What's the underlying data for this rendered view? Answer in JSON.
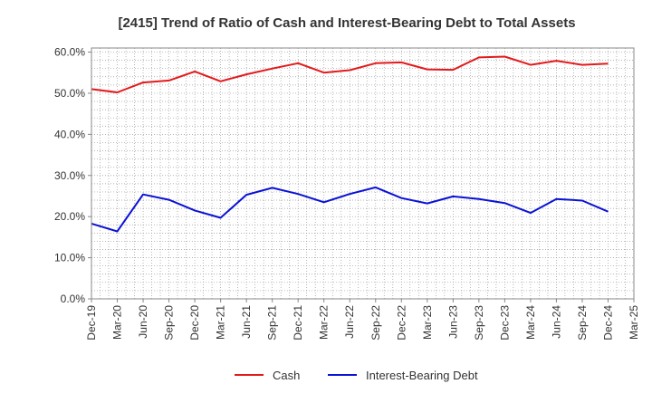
{
  "chart_data": {
    "type": "line",
    "title": "[2415]  Trend of Ratio of Cash and Interest-Bearing Debt to Total Assets",
    "xlabel": "",
    "ylabel": "",
    "x": [
      "Dec-19",
      "Mar-20",
      "Jun-20",
      "Sep-20",
      "Dec-20",
      "Mar-21",
      "Jun-21",
      "Sep-21",
      "Dec-21",
      "Mar-22",
      "Jun-22",
      "Sep-22",
      "Dec-22",
      "Mar-23",
      "Jun-23",
      "Sep-23",
      "Dec-23",
      "Mar-24",
      "Jun-24",
      "Sep-24",
      "Dec-24",
      "Mar-25"
    ],
    "y_ticks": [
      "0.0%",
      "10.0%",
      "20.0%",
      "30.0%",
      "40.0%",
      "50.0%",
      "60.0%"
    ],
    "ylim": [
      0,
      61
    ],
    "grid": true,
    "legend_position": "bottom",
    "series": [
      {
        "name": "Cash",
        "color": "#e31a1c",
        "values": [
          51.0,
          50.2,
          52.6,
          53.1,
          55.3,
          52.9,
          54.6,
          56.0,
          57.3,
          55.0,
          55.6,
          57.3,
          57.5,
          55.8,
          55.7,
          58.7,
          58.9,
          56.9,
          57.9,
          56.9,
          57.2,
          null
        ]
      },
      {
        "name": "Interest-Bearing Debt",
        "color": "#0a12d4",
        "values": [
          18.3,
          16.4,
          25.4,
          24.1,
          21.5,
          19.7,
          25.3,
          27.0,
          25.5,
          23.5,
          25.5,
          27.1,
          24.5,
          23.2,
          24.9,
          24.3,
          23.3,
          20.9,
          24.3,
          23.9,
          21.2,
          null
        ]
      }
    ]
  }
}
